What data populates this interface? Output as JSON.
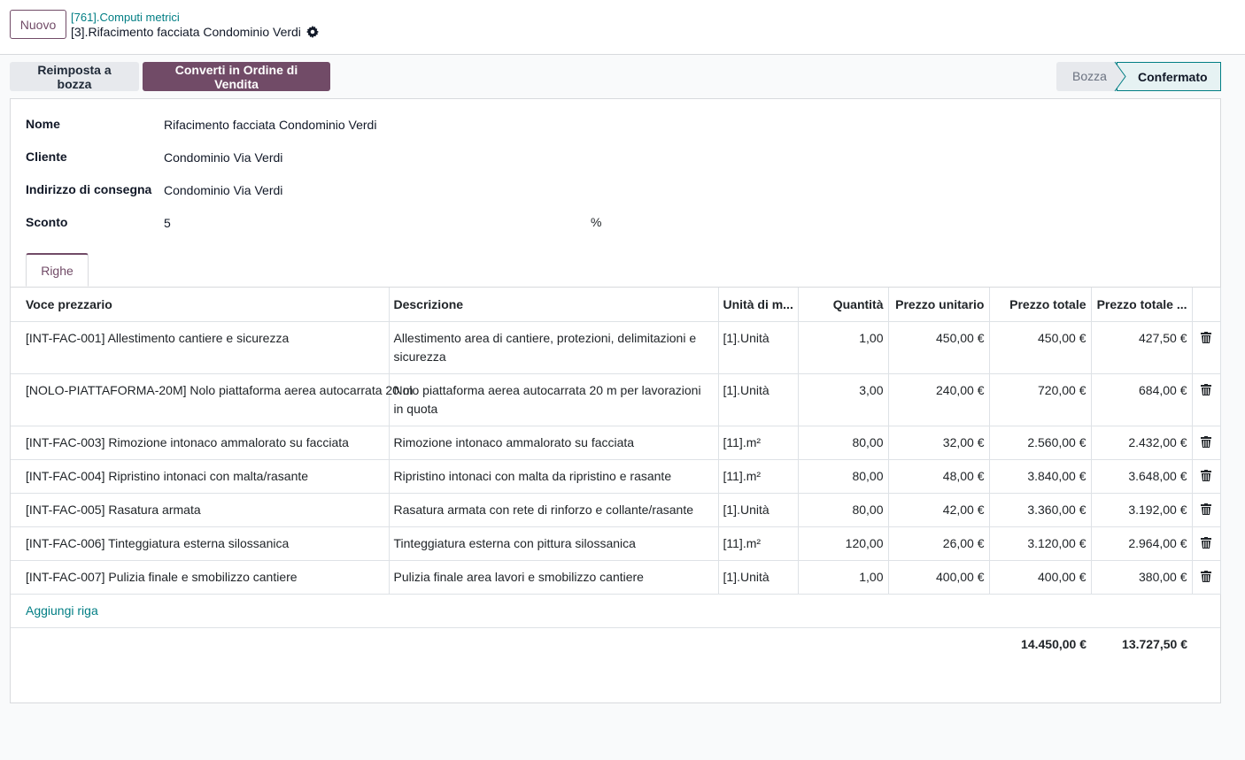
{
  "header": {
    "new_button": "Nuovo",
    "breadcrumb": "[761].Computi metrici",
    "record_title": "[3].Rifacimento facciata Condominio Verdi"
  },
  "actions": {
    "reset_draft": "Reimposta a bozza",
    "convert_order": "Converti in Ordine di Vendita"
  },
  "statusbar": {
    "draft": "Bozza",
    "confirmed": "Confermato",
    "active": "Confermato"
  },
  "form": {
    "name_label": "Nome",
    "name_value": "Rifacimento facciata Condominio Verdi",
    "customer_label": "Cliente",
    "customer_value": "Condominio Via Verdi",
    "address_label": "Indirizzo di consegna",
    "address_value": "Condominio Via Verdi",
    "discount_label": "Sconto",
    "discount_value": "5",
    "discount_unit": "%"
  },
  "tabs": {
    "lines": "Righe"
  },
  "table": {
    "headers": {
      "item": "Voce prezzario",
      "description": "Descrizione",
      "uom": "Unità di m...",
      "qty": "Quantità",
      "unit_price": "Prezzo unitario",
      "total": "Prezzo totale",
      "total_disc": "Prezzo totale ..."
    },
    "rows": [
      {
        "item": "[INT-FAC-001] Allestimento cantiere e sicurezza",
        "description": "Allestimento area di cantiere, protezioni, delimitazioni e sicurezza",
        "uom": "[1].Unità",
        "qty": "1,00",
        "unit_price": "450,00 €",
        "total": "450,00 €",
        "total_disc": "427,50 €"
      },
      {
        "item": "[NOLO-PIATTAFORMA-20M] Nolo piattaforma aerea autocarrata 20 m",
        "description": "Nolo piattaforma aerea autocarrata 20 m per lavorazioni in quota",
        "uom": "[1].Unità",
        "qty": "3,00",
        "unit_price": "240,00 €",
        "total": "720,00 €",
        "total_disc": "684,00 €"
      },
      {
        "item": "[INT-FAC-003] Rimozione intonaco ammalorato su facciata",
        "description": "Rimozione intonaco ammalorato su facciata",
        "uom": "[11].m²",
        "qty": "80,00",
        "unit_price": "32,00 €",
        "total": "2.560,00 €",
        "total_disc": "2.432,00 €"
      },
      {
        "item": "[INT-FAC-004] Ripristino intonaci con malta/rasante",
        "description": "Ripristino intonaci con malta da ripristino e rasante",
        "uom": "[11].m²",
        "qty": "80,00",
        "unit_price": "48,00 €",
        "total": "3.840,00 €",
        "total_disc": "3.648,00 €"
      },
      {
        "item": "[INT-FAC-005] Rasatura armata",
        "description": "Rasatura armata con rete di rinforzo e collante/rasante",
        "uom": "[1].Unità",
        "qty": "80,00",
        "unit_price": "42,00 €",
        "total": "3.360,00 €",
        "total_disc": "3.192,00 €"
      },
      {
        "item": "[INT-FAC-006] Tinteggiatura esterna silossanica",
        "description": "Tinteggiatura esterna con pittura silossanica",
        "uom": "[11].m²",
        "qty": "120,00",
        "unit_price": "26,00 €",
        "total": "3.120,00 €",
        "total_disc": "2.964,00 €"
      },
      {
        "item": "[INT-FAC-007] Pulizia finale e smobilizzo cantiere",
        "description": "Pulizia finale area lavori e smobilizzo cantiere",
        "uom": "[1].Unità",
        "qty": "1,00",
        "unit_price": "400,00 €",
        "total": "400,00 €",
        "total_disc": "380,00 €"
      }
    ],
    "add_line": "Aggiungi riga",
    "sum_total": "14.450,00 €",
    "sum_total_disc": "13.727,50 €"
  },
  "colors": {
    "primary": "#714b67",
    "link": "#017e84",
    "border": "#d8dadd"
  },
  "icons": {
    "settings": "gear-icon",
    "delete": "trash-icon"
  }
}
